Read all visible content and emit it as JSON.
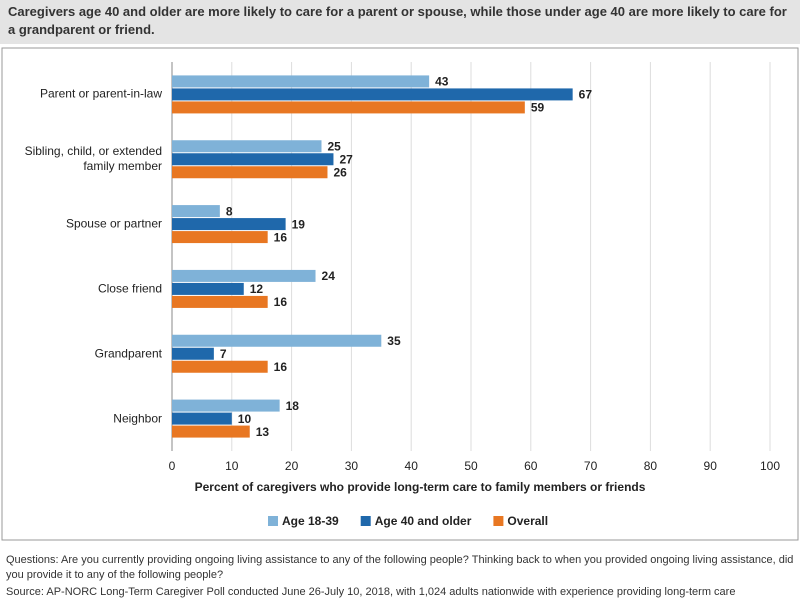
{
  "chart_data": {
    "type": "hbar",
    "title": "Caregivers age 40 and older are more likely to care for a parent or spouse, while those under age 40 are more likely to care for a grandparent or friend.",
    "xlabel": "Percent of caregivers who provide long-term care to family members or friends",
    "categories": [
      "Parent or parent-in-law",
      "Sibling, child, or extended family member",
      "Spouse or partner",
      "Close friend",
      "Grandparent",
      "Neighbor"
    ],
    "series": [
      {
        "name": "Age 18-39",
        "color": "#7fb2d8",
        "values": [
          43,
          25,
          8,
          24,
          35,
          18
        ]
      },
      {
        "name": "Age 40 and older",
        "color": "#1f68ab",
        "values": [
          67,
          27,
          19,
          12,
          7,
          10
        ]
      },
      {
        "name": "Overall",
        "color": "#e87722",
        "values": [
          59,
          26,
          16,
          16,
          16,
          13
        ]
      }
    ],
    "xlim": [
      0,
      100
    ],
    "xticks": [
      0,
      10,
      20,
      30,
      40,
      50,
      60,
      70,
      80,
      90,
      100
    ],
    "grid": true,
    "legend": "bottom",
    "notes": "Questions: Are you currently providing ongoing living assistance to any of the following people? Thinking back to when you provided ongoing living assistance, did you provide it to any of the following people?",
    "source": "Source: AP-NORC Long-Term Caregiver Poll conducted June 26-July 10, 2018, with 1,024 adults nationwide with experience providing long-term care"
  }
}
